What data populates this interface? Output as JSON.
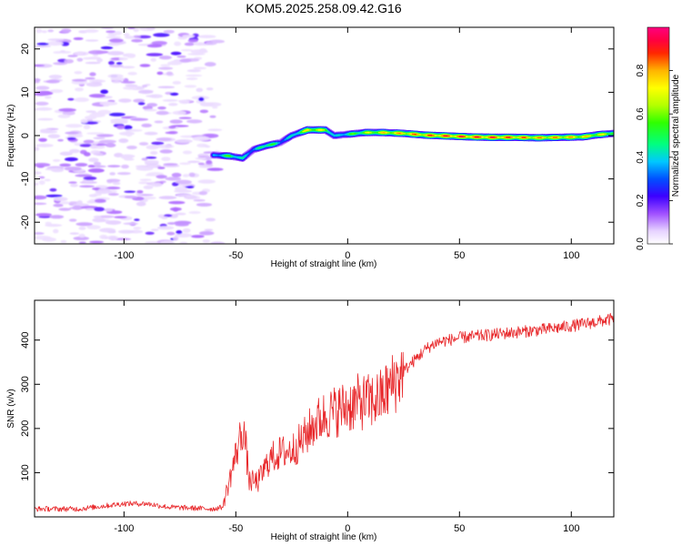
{
  "figure_title": "KOM5.2025.258.09.42.G16",
  "colors": {
    "snr_line": "#e8282b",
    "frame": "#000000",
    "background": "#ffffff"
  },
  "chart_data": [
    {
      "type": "heatmap",
      "title": "KOM5.2025.258.09.42.G16",
      "xlabel": "Height of straight line (km)",
      "ylabel": "Frequency (Hz)",
      "xlim": [
        -140,
        119
      ],
      "ylim": [
        -25,
        25
      ],
      "xticks": [
        -100,
        -50,
        0,
        50,
        100
      ],
      "yticks": [
        -20,
        -10,
        0,
        10,
        20
      ],
      "colorbar": {
        "label": "Normalized spectral amplitude",
        "range": [
          0,
          1
        ],
        "ticks": [
          0.0,
          0.2,
          0.4,
          0.6,
          0.8
        ],
        "tick_labels": [
          "0.0",
          "0.2",
          "0.4",
          "0.6",
          "0.8"
        ],
        "colormap": "white-violet-blue-cyan-green-yellow-red-magenta"
      },
      "noise_region": {
        "x_range": [
          -140,
          -58
        ],
        "y_range": [
          -25,
          25
        ],
        "amplitude_range": [
          0.0,
          0.12
        ]
      },
      "ridge": [
        {
          "x": -60,
          "y": -4.5,
          "amp": 0.4
        },
        {
          "x": -53,
          "y": -4.7,
          "amp": 0.6
        },
        {
          "x": -47,
          "y": -5.2,
          "amp": 0.45
        },
        {
          "x": -42,
          "y": -3.2,
          "amp": 0.4
        },
        {
          "x": -36,
          "y": -2.3,
          "amp": 0.65
        },
        {
          "x": -30,
          "y": -1.6,
          "amp": 0.4
        },
        {
          "x": -25,
          "y": 0.0,
          "amp": 0.45
        },
        {
          "x": -18,
          "y": 1.3,
          "amp": 0.8
        },
        {
          "x": -10,
          "y": 1.3,
          "amp": 0.7
        },
        {
          "x": -6,
          "y": 0.0,
          "amp": 0.4
        },
        {
          "x": 0,
          "y": 0.3,
          "amp": 0.55
        },
        {
          "x": 8,
          "y": 0.7,
          "amp": 0.7
        },
        {
          "x": 16,
          "y": 0.7,
          "amp": 0.8
        },
        {
          "x": 25,
          "y": 0.5,
          "amp": 0.85
        },
        {
          "x": 35,
          "y": 0.1,
          "amp": 0.9
        },
        {
          "x": 45,
          "y": -0.1,
          "amp": 0.95
        },
        {
          "x": 55,
          "y": -0.3,
          "amp": 0.95
        },
        {
          "x": 65,
          "y": -0.4,
          "amp": 0.95
        },
        {
          "x": 75,
          "y": -0.4,
          "amp": 0.9
        },
        {
          "x": 85,
          "y": -0.5,
          "amp": 0.85
        },
        {
          "x": 95,
          "y": -0.4,
          "amp": 0.85
        },
        {
          "x": 105,
          "y": -0.3,
          "amp": 0.8
        },
        {
          "x": 112,
          "y": 0.2,
          "amp": 0.75
        },
        {
          "x": 119,
          "y": 0.5,
          "amp": 0.7
        }
      ]
    },
    {
      "type": "line",
      "xlabel": "Height of straight line (km)",
      "ylabel": "SNR (v/v)",
      "xlim": [
        -140,
        119
      ],
      "ylim": [
        0,
        490
      ],
      "xticks": [
        -100,
        -50,
        0,
        50,
        100
      ],
      "yticks": [
        100,
        200,
        300,
        400
      ],
      "series": [
        {
          "name": "SNR",
          "color": "#e8282b",
          "trend": [
            [
              -140,
              18
            ],
            [
              -120,
              18
            ],
            [
              -100,
              30
            ],
            [
              -90,
              30
            ],
            [
              -80,
              22
            ],
            [
              -60,
              18
            ],
            [
              -56,
              22
            ],
            [
              -53,
              80
            ],
            [
              -50,
              140
            ],
            [
              -47,
              200
            ],
            [
              -46,
              180
            ],
            [
              -44,
              80
            ],
            [
              -40,
              80
            ],
            [
              -35,
              130
            ],
            [
              -30,
              145
            ],
            [
              -25,
              150
            ],
            [
              -20,
              175
            ],
            [
              -15,
              210
            ],
            [
              -10,
              230
            ],
            [
              -5,
              240
            ],
            [
              0,
              250
            ],
            [
              5,
              260
            ],
            [
              10,
              260
            ],
            [
              15,
              270
            ],
            [
              20,
              300
            ],
            [
              25,
              330
            ],
            [
              30,
              355
            ],
            [
              35,
              380
            ],
            [
              40,
              395
            ],
            [
              45,
              400
            ],
            [
              50,
              405
            ],
            [
              60,
              410
            ],
            [
              70,
              415
            ],
            [
              80,
              420
            ],
            [
              90,
              425
            ],
            [
              100,
              432
            ],
            [
              110,
              440
            ],
            [
              119,
              448
            ]
          ]
        }
      ]
    }
  ]
}
